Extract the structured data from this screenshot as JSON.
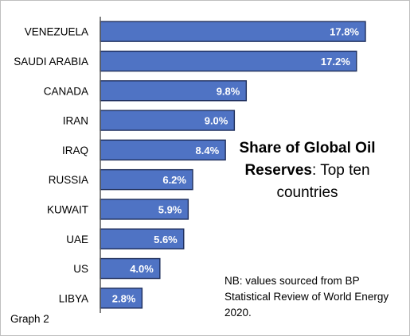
{
  "chart_data": {
    "type": "bar",
    "orientation": "horizontal",
    "categories": [
      "VENEZUELA",
      "SAUDI ARABIA",
      "CANADA",
      "IRAN",
      "IRAQ",
      "RUSSIA",
      "KUWAIT",
      "UAE",
      "US",
      "LIBYA"
    ],
    "values": [
      17.8,
      17.2,
      9.8,
      9.0,
      8.4,
      6.2,
      5.9,
      5.6,
      4.0,
      2.8
    ],
    "value_labels": [
      "17.8%",
      "17.2%",
      "9.8%",
      "9.0%",
      "8.4%",
      "6.2%",
      "5.9%",
      "5.6%",
      "4.0%",
      "2.8%"
    ],
    "title_bold": "Share of Global Oil Reserves",
    "title_rest": ": Top ten countries",
    "xlabel": "",
    "ylabel": "",
    "xlim": [
      0,
      17.8
    ],
    "grid": false,
    "legend": "none",
    "bar_color": "#4f73c4",
    "bar_edge_color": "#1f2f5c"
  },
  "note": "NB: values sourced from BP Statistical Review of World Energy 2020.",
  "figure_label": "Graph 2"
}
